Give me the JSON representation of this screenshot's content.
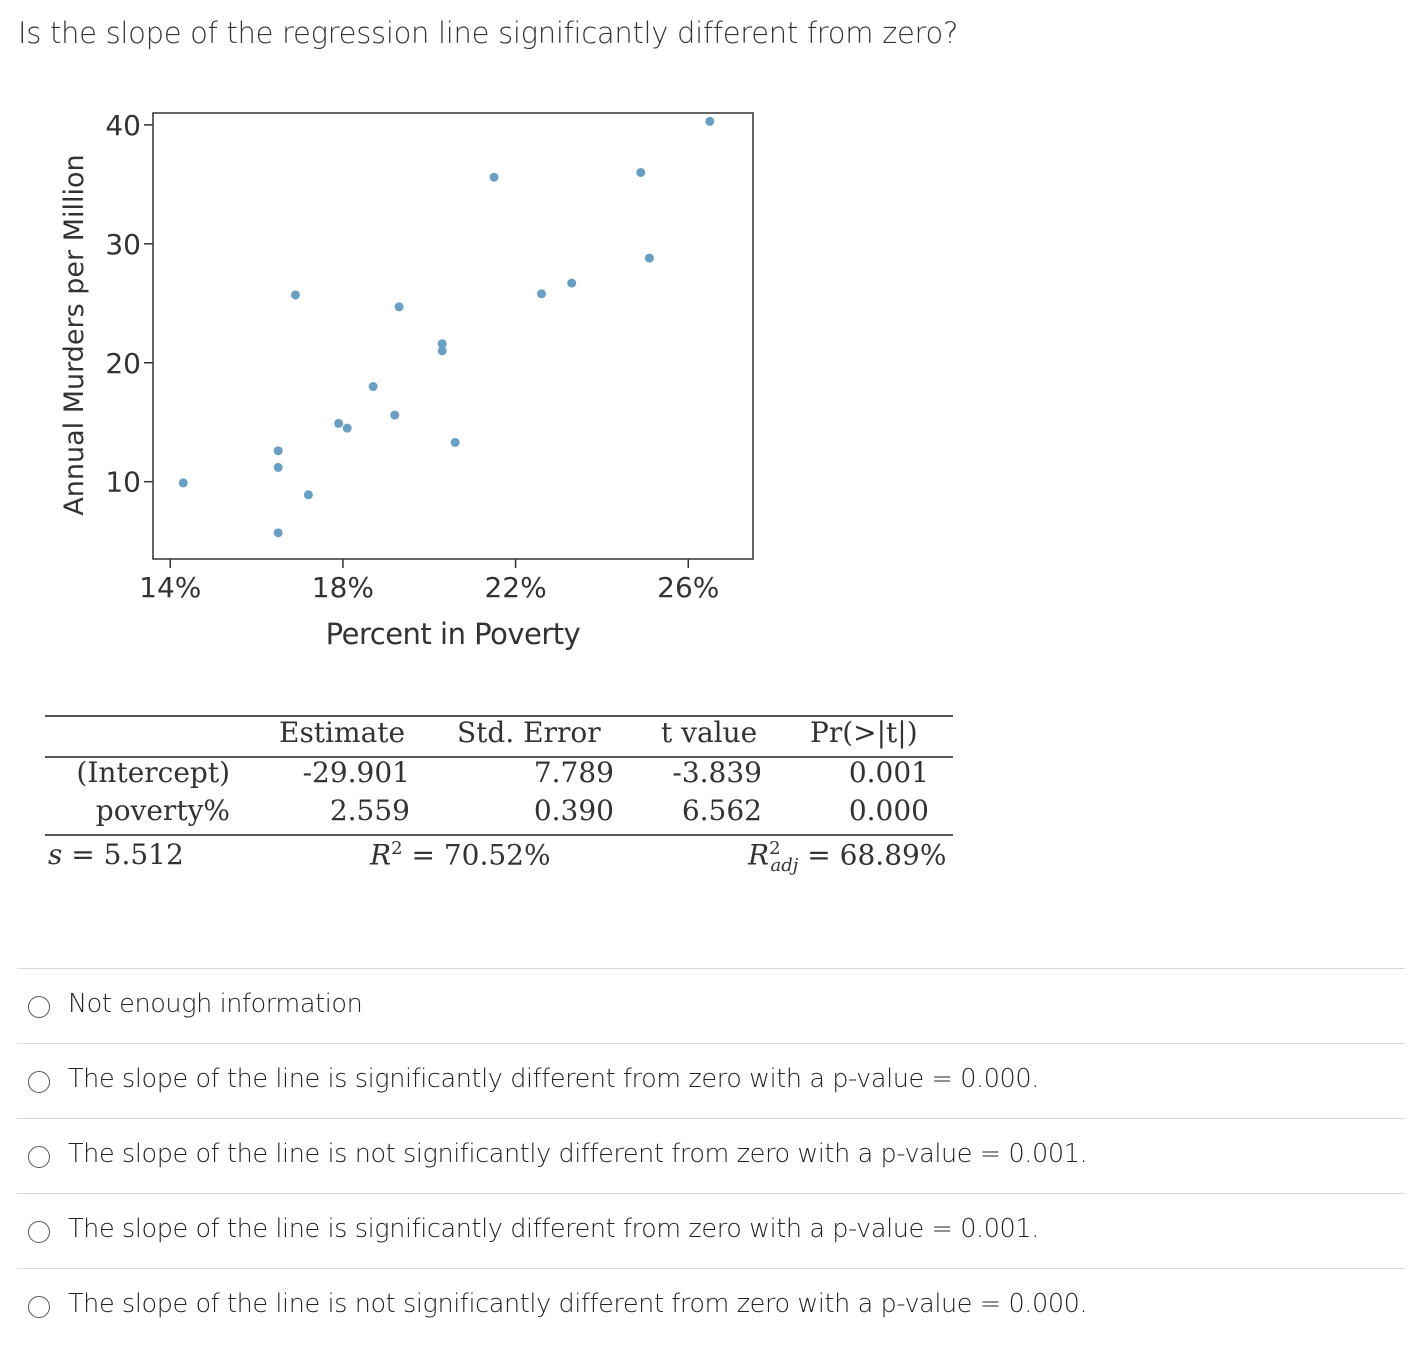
{
  "question": "Is the slope of the regression line significantly different from zero?",
  "colors": {
    "point": "#6a9fc4",
    "axis": "#333333",
    "rule": "#555555"
  },
  "chart_data": {
    "type": "scatter",
    "xlabel": "Percent in Poverty",
    "ylabel": "Annual Murders per Million",
    "xlim": [
      13.6,
      27.5
    ],
    "ylim": [
      3.5,
      41.0
    ],
    "x_ticks": [
      14,
      18,
      22,
      26
    ],
    "x_tick_labels": [
      "14%",
      "18%",
      "22%",
      "26%"
    ],
    "y_ticks": [
      10,
      20,
      30,
      40
    ],
    "y_tick_labels": [
      "10",
      "20",
      "30",
      "40"
    ],
    "grid": false,
    "points": [
      {
        "x": 14.3,
        "y": 9.9
      },
      {
        "x": 16.5,
        "y": 5.7
      },
      {
        "x": 16.5,
        "y": 11.2
      },
      {
        "x": 16.5,
        "y": 12.6
      },
      {
        "x": 16.9,
        "y": 25.7
      },
      {
        "x": 17.2,
        "y": 8.9
      },
      {
        "x": 17.9,
        "y": 14.9
      },
      {
        "x": 18.1,
        "y": 14.5
      },
      {
        "x": 18.7,
        "y": 18.0
      },
      {
        "x": 19.2,
        "y": 15.6
      },
      {
        "x": 19.3,
        "y": 24.7
      },
      {
        "x": 20.3,
        "y": 21.6
      },
      {
        "x": 20.3,
        "y": 21.0
      },
      {
        "x": 20.6,
        "y": 13.3
      },
      {
        "x": 21.5,
        "y": 35.6
      },
      {
        "x": 22.6,
        "y": 25.8
      },
      {
        "x": 23.3,
        "y": 26.7
      },
      {
        "x": 24.9,
        "y": 36.0
      },
      {
        "x": 25.1,
        "y": 28.8
      },
      {
        "x": 26.5,
        "y": 40.3
      }
    ]
  },
  "regression": {
    "headers": [
      "Estimate",
      "Std. Error",
      "t value",
      "Pr(>|t|)"
    ],
    "rows": [
      {
        "name": "(Intercept)",
        "estimate": "-29.901",
        "std_error": "7.789",
        "t_value": "-3.839",
        "p_value": "0.001"
      },
      {
        "name": "poverty%",
        "estimate": "2.559",
        "std_error": "0.390",
        "t_value": "6.562",
        "p_value": "0.000"
      }
    ],
    "s_label": "s",
    "s_value": "= 5.512",
    "r2_label": "R",
    "r2_sup": "2",
    "r2_value": "= 70.52%",
    "r2adj_label": "R",
    "r2adj_sup": "2",
    "r2adj_sub": "adj",
    "r2adj_value": "= 68.89%"
  },
  "options": [
    "Not enough information",
    "The slope of the line is significantly different from zero with a p-value = 0.000.",
    "The slope of the line is not significantly different from zero with a p-value = 0.001.",
    "The slope of the line is significantly different from zero with a p-value = 0.001.",
    "The slope of the line is not significantly different from zero with a p-value = 0.000."
  ]
}
